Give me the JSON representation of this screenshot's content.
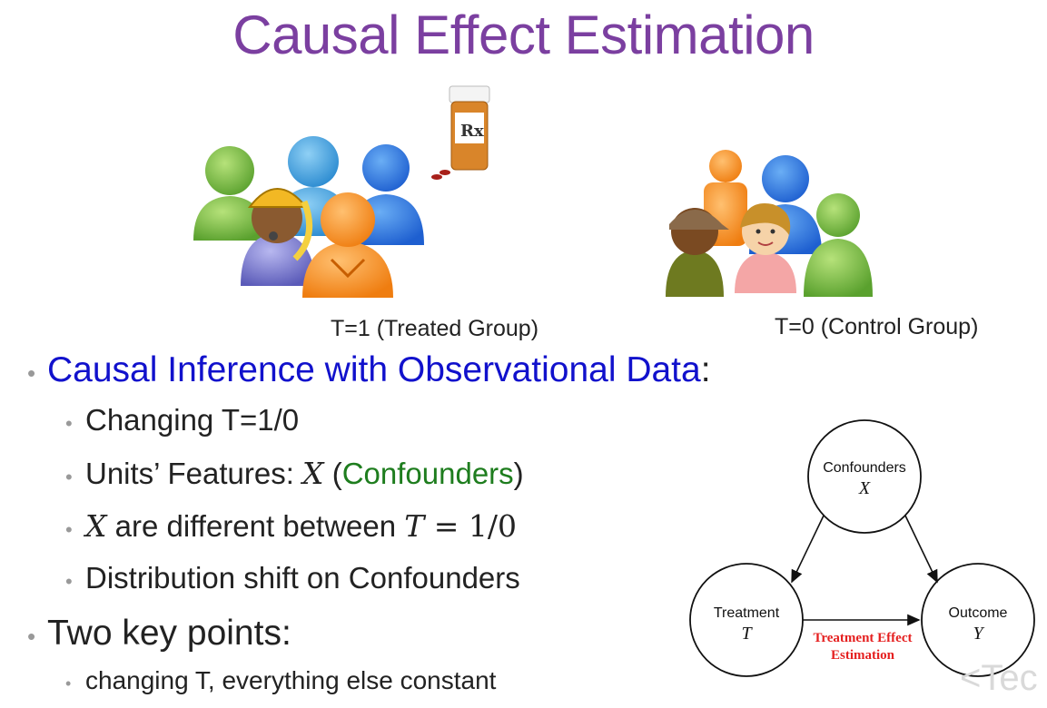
{
  "title": "Causal Effect Estimation",
  "groups": {
    "treated_label": "T=1 (Treated Group)",
    "control_label": "T=0 (Control Group)",
    "pill_label": "Rx"
  },
  "bullets": {
    "main_blue": "Causal Inference with Observational Data",
    "main_colon": ":",
    "sub1": "Changing T=1/0",
    "sub2_prefix": "Units’ Features: ",
    "sub2_var": "X",
    "sub2_open": " (",
    "sub2_green": "Confounders",
    "sub2_close": ")",
    "sub3_var": "X",
    "sub3_middle": " are different between ",
    "sub3_t": "T",
    "sub3_eq": " = 1/0",
    "sub4": "Distribution shift on Confounders",
    "main2": "Two key points:",
    "subsub1": "changing T, everything else constant"
  },
  "diagram": {
    "confounders_label": "Confounders",
    "confounders_var": "X",
    "treatment_label": "Treatment",
    "treatment_var": "T",
    "outcome_label": "Outcome",
    "outcome_var": "Y",
    "effect_line1": "Treatment Effect",
    "effect_line2": "Estimation"
  },
  "watermark": "<Tec",
  "colors": {
    "title": "#7b3fa0",
    "highlight_blue": "#1111cc",
    "confounders_green": "#1e7d1e",
    "effect_red": "#e52020"
  }
}
